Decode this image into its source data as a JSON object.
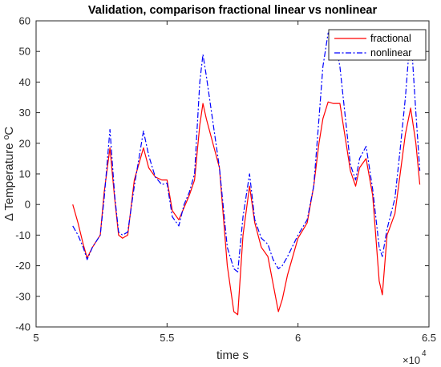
{
  "chart_data": {
    "type": "line",
    "title": "Validation, comparison fractional linear vs nonlinear",
    "xlabel": "time s",
    "ylabel": "Δ Temperature ºC",
    "x_exponent_label": "×10",
    "x_exponent_power": "4",
    "xlim": [
      5,
      6.5
    ],
    "ylim": [
      -40,
      60
    ],
    "xticks": [
      "5",
      "5.5",
      "6",
      "6.5"
    ],
    "yticks": [
      "-40",
      "-30",
      "-20",
      "-10",
      "0",
      "10",
      "20",
      "30",
      "40",
      "50",
      "60"
    ],
    "x_tick_values": [
      5,
      5.5,
      6,
      6.5
    ],
    "y_tick_values": [
      -40,
      -30,
      -20,
      -10,
      0,
      10,
      20,
      30,
      40,
      50,
      60
    ],
    "grid": false,
    "legend_position": "top-right",
    "series": [
      {
        "name": "fractional",
        "color": "#ff0000",
        "style": "solid",
        "points": [
          [
            5.14,
            0
          ],
          [
            5.16,
            -6
          ],
          [
            5.18,
            -13
          ],
          [
            5.195,
            -17.5
          ],
          [
            5.215,
            -14
          ],
          [
            5.245,
            -10
          ],
          [
            5.26,
            4
          ],
          [
            5.282,
            18.5
          ],
          [
            5.3,
            2
          ],
          [
            5.315,
            -10
          ],
          [
            5.33,
            -11
          ],
          [
            5.35,
            -10
          ],
          [
            5.375,
            8
          ],
          [
            5.41,
            18.5
          ],
          [
            5.43,
            12
          ],
          [
            5.455,
            9
          ],
          [
            5.48,
            8
          ],
          [
            5.5,
            8
          ],
          [
            5.52,
            -2
          ],
          [
            5.545,
            -5
          ],
          [
            5.565,
            -1
          ],
          [
            5.585,
            3
          ],
          [
            5.605,
            8
          ],
          [
            5.625,
            26
          ],
          [
            5.637,
            33
          ],
          [
            5.65,
            28
          ],
          [
            5.7,
            12
          ],
          [
            5.73,
            -20
          ],
          [
            5.755,
            -35
          ],
          [
            5.77,
            -36
          ],
          [
            5.79,
            -10
          ],
          [
            5.815,
            6
          ],
          [
            5.835,
            -6
          ],
          [
            5.86,
            -14
          ],
          [
            5.885,
            -17
          ],
          [
            5.905,
            -26
          ],
          [
            5.925,
            -35
          ],
          [
            5.94,
            -31
          ],
          [
            5.96,
            -23
          ],
          [
            6,
            -11
          ],
          [
            6.035,
            -6
          ],
          [
            6.06,
            6
          ],
          [
            6.08,
            20
          ],
          [
            6.095,
            28
          ],
          [
            6.115,
            33.5
          ],
          [
            6.135,
            33
          ],
          [
            6.16,
            33
          ],
          [
            6.2,
            11
          ],
          [
            6.22,
            6
          ],
          [
            6.235,
            12
          ],
          [
            6.26,
            15
          ],
          [
            6.285,
            3
          ],
          [
            6.31,
            -25
          ],
          [
            6.322,
            -29.5
          ],
          [
            6.34,
            -10
          ],
          [
            6.37,
            -3
          ],
          [
            6.39,
            10
          ],
          [
            6.41,
            23
          ],
          [
            6.43,
            31.5
          ],
          [
            6.45,
            20
          ],
          [
            6.465,
            6.5
          ]
        ]
      },
      {
        "name": "nonlinear",
        "color": "#0000ff",
        "style": "dashdot",
        "points": [
          [
            5.14,
            -7
          ],
          [
            5.16,
            -10
          ],
          [
            5.18,
            -14
          ],
          [
            5.195,
            -18
          ],
          [
            5.215,
            -14
          ],
          [
            5.245,
            -10
          ],
          [
            5.26,
            2
          ],
          [
            5.282,
            24.5
          ],
          [
            5.3,
            3
          ],
          [
            5.315,
            -9
          ],
          [
            5.33,
            -10
          ],
          [
            5.35,
            -9
          ],
          [
            5.375,
            6
          ],
          [
            5.41,
            24
          ],
          [
            5.43,
            16
          ],
          [
            5.455,
            9
          ],
          [
            5.48,
            6.5
          ],
          [
            5.5,
            7
          ],
          [
            5.52,
            -4
          ],
          [
            5.545,
            -7
          ],
          [
            5.565,
            0
          ],
          [
            5.585,
            4
          ],
          [
            5.605,
            10
          ],
          [
            5.625,
            40
          ],
          [
            5.637,
            49
          ],
          [
            5.65,
            42
          ],
          [
            5.7,
            12
          ],
          [
            5.73,
            -14
          ],
          [
            5.755,
            -21
          ],
          [
            5.77,
            -22
          ],
          [
            5.79,
            -4
          ],
          [
            5.815,
            10
          ],
          [
            5.835,
            -5
          ],
          [
            5.86,
            -11
          ],
          [
            5.885,
            -13
          ],
          [
            5.905,
            -18
          ],
          [
            5.925,
            -21
          ],
          [
            5.94,
            -20
          ],
          [
            5.96,
            -17
          ],
          [
            6,
            -10
          ],
          [
            6.035,
            -5
          ],
          [
            6.06,
            6
          ],
          [
            6.08,
            28
          ],
          [
            6.095,
            45
          ],
          [
            6.115,
            56
          ],
          [
            6.135,
            57
          ],
          [
            6.16,
            45
          ],
          [
            6.2,
            13
          ],
          [
            6.22,
            8
          ],
          [
            6.235,
            15
          ],
          [
            6.26,
            19
          ],
          [
            6.285,
            5
          ],
          [
            6.31,
            -14
          ],
          [
            6.322,
            -17
          ],
          [
            6.34,
            -8
          ],
          [
            6.37,
            2
          ],
          [
            6.39,
            18
          ],
          [
            6.41,
            35
          ],
          [
            6.43,
            57
          ],
          [
            6.45,
            30
          ],
          [
            6.465,
            11
          ]
        ]
      }
    ]
  }
}
